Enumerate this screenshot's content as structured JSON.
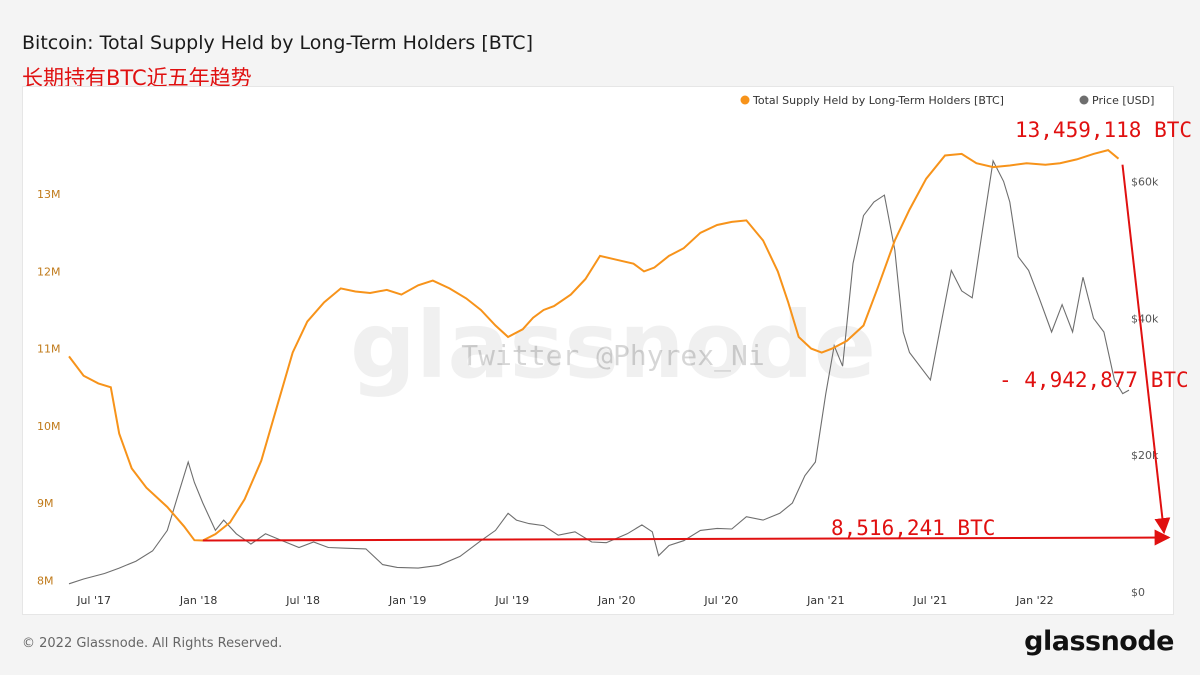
{
  "header": {
    "title": "Bitcoin: Total Supply Held by Long-Term Holders [BTC]",
    "subtitle": "长期持有BTC近五年趋势"
  },
  "footer": {
    "copyright": "© 2022 Glassnode. All Rights Reserved.",
    "brand": "glassnode"
  },
  "watermark": {
    "brand": "glassnode",
    "handle": "Twitter @Phyrex_Ni"
  },
  "colors": {
    "lth": "#f7931a",
    "price": "#6e6e6e",
    "annotation": "#e01010",
    "left_axis": "#c07a1a",
    "right_axis": "#555555"
  },
  "chart_data": {
    "type": "line",
    "title": "Bitcoin: Total Supply Held by Long-Term Holders [BTC]",
    "x_ticks": [
      "Jul '17",
      "Jan '18",
      "Jul '18",
      "Jan '19",
      "Jul '19",
      "Jan '20",
      "Jul '20",
      "Jan '21",
      "Jul '21",
      "Jan '22"
    ],
    "x_tick_dates": [
      2017.5,
      2018.0,
      2018.5,
      2019.0,
      2019.5,
      2020.0,
      2020.5,
      2021.0,
      2021.5,
      2022.0
    ],
    "xlim": [
      2017.38,
      2022.45
    ],
    "y_left": {
      "label": "Total Supply Held by Long-Term Holders [BTC]",
      "ticks": [
        "8M",
        "9M",
        "10M",
        "11M",
        "12M",
        "13M"
      ],
      "tick_values": [
        8000000,
        9000000,
        10000000,
        11000000,
        12000000,
        13000000
      ],
      "lim": [
        7850000,
        14050000
      ]
    },
    "y_right": {
      "label": "Price [USD]",
      "ticks": [
        "$0",
        "$20k",
        "$40k",
        "$60k"
      ],
      "tick_values": [
        0,
        20000,
        40000,
        60000
      ],
      "lim": [
        0,
        70000
      ]
    },
    "legend": [
      "Total Supply Held by Long-Term Holders [BTC]",
      "Price [USD]"
    ],
    "series": [
      {
        "name": "Total Supply Held by Long-Term Holders [BTC]",
        "axis": "left",
        "x": [
          2017.38,
          2017.45,
          2017.52,
          2017.58,
          2017.62,
          2017.68,
          2017.75,
          2017.85,
          2017.93,
          2017.98,
          2018.02,
          2018.08,
          2018.15,
          2018.22,
          2018.3,
          2018.38,
          2018.45,
          2018.52,
          2018.6,
          2018.68,
          2018.75,
          2018.82,
          2018.9,
          2018.97,
          2019.05,
          2019.12,
          2019.2,
          2019.28,
          2019.35,
          2019.42,
          2019.48,
          2019.55,
          2019.6,
          2019.65,
          2019.7,
          2019.78,
          2019.85,
          2019.92,
          2020.0,
          2020.08,
          2020.13,
          2020.18,
          2020.25,
          2020.32,
          2020.4,
          2020.48,
          2020.55,
          2020.62,
          2020.7,
          2020.77,
          2020.82,
          2020.87,
          2020.93,
          2020.98,
          2021.03,
          2021.1,
          2021.18,
          2021.25,
          2021.33,
          2021.4,
          2021.48,
          2021.57,
          2021.65,
          2021.72,
          2021.8,
          2021.88,
          2021.96,
          2022.05,
          2022.12,
          2022.2,
          2022.28,
          2022.35,
          2022.4
        ],
        "values": [
          10900000,
          10650000,
          10550000,
          10500000,
          9900000,
          9450000,
          9200000,
          8950000,
          8700000,
          8520000,
          8516241,
          8600000,
          8750000,
          9050000,
          9550000,
          10300000,
          10950000,
          11350000,
          11600000,
          11780000,
          11740000,
          11720000,
          11760000,
          11700000,
          11820000,
          11880000,
          11780000,
          11650000,
          11500000,
          11300000,
          11150000,
          11250000,
          11400000,
          11500000,
          11550000,
          11700000,
          11900000,
          12200000,
          12150000,
          12100000,
          12000000,
          12050000,
          12200000,
          12300000,
          12500000,
          12600000,
          12640000,
          12660000,
          12400000,
          12000000,
          11600000,
          11150000,
          11000000,
          10950000,
          11000000,
          11100000,
          11300000,
          11800000,
          12400000,
          12800000,
          13200000,
          13500000,
          13520000,
          13400000,
          13350000,
          13370000,
          13400000,
          13380000,
          13400000,
          13450000,
          13520000,
          13570000,
          13459118
        ]
      },
      {
        "name": "Price [USD]",
        "axis": "right",
        "x": [
          2017.38,
          2017.45,
          2017.55,
          2017.62,
          2017.7,
          2017.78,
          2017.85,
          2017.9,
          2017.95,
          2017.98,
          2018.02,
          2018.08,
          2018.12,
          2018.18,
          2018.25,
          2018.32,
          2018.4,
          2018.48,
          2018.55,
          2018.62,
          2018.7,
          2018.8,
          2018.88,
          2018.95,
          2019.05,
          2019.15,
          2019.25,
          2019.35,
          2019.42,
          2019.48,
          2019.52,
          2019.58,
          2019.65,
          2019.72,
          2019.8,
          2019.88,
          2019.95,
          2020.05,
          2020.12,
          2020.17,
          2020.2,
          2020.25,
          2020.32,
          2020.4,
          2020.48,
          2020.55,
          2020.62,
          2020.7,
          2020.78,
          2020.84,
          2020.9,
          2020.95,
          2021.0,
          2021.04,
          2021.08,
          2021.13,
          2021.18,
          2021.23,
          2021.28,
          2021.33,
          2021.37,
          2021.4,
          2021.45,
          2021.5,
          2021.55,
          2021.6,
          2021.65,
          2021.7,
          2021.75,
          2021.8,
          2021.85,
          2021.88,
          2021.92,
          2021.97,
          2022.02,
          2022.08,
          2022.13,
          2022.18,
          2022.23,
          2022.28,
          2022.33,
          2022.38,
          2022.42,
          2022.45
        ],
        "values": [
          1200,
          1900,
          2700,
          3500,
          4500,
          6000,
          9000,
          14000,
          19000,
          16000,
          13000,
          9000,
          10500,
          8500,
          7000,
          8500,
          7500,
          6500,
          7300,
          6500,
          6400,
          6300,
          4000,
          3600,
          3500,
          3900,
          5200,
          7500,
          9000,
          11500,
          10500,
          10000,
          9700,
          8300,
          8800,
          7300,
          7200,
          8500,
          9800,
          8800,
          5300,
          6800,
          7500,
          9000,
          9300,
          9200,
          11000,
          10500,
          11500,
          13000,
          17000,
          19000,
          29000,
          36000,
          33000,
          48000,
          55000,
          57000,
          58000,
          50000,
          38000,
          35000,
          33000,
          31000,
          39000,
          47000,
          44000,
          43000,
          53000,
          63000,
          60000,
          57000,
          49000,
          47000,
          43000,
          38000,
          42000,
          38000,
          46000,
          40000,
          38000,
          31000,
          29000,
          29500
        ]
      }
    ]
  },
  "annotations": {
    "peak_label": "13,459,118 BTC",
    "drop_label": "- 4,942,877 BTC",
    "base_label": "8,516,241 BTC"
  }
}
